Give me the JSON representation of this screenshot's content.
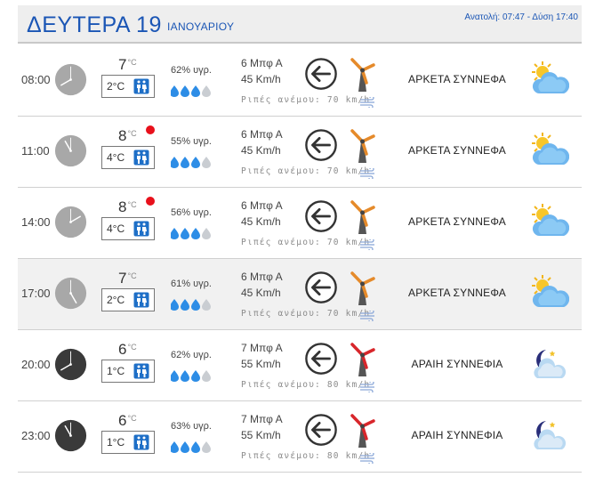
{
  "header": {
    "day": "ΔΕΥΤΕΡΑ 19",
    "month": "ΙΑΝΟΥΑΡΙΟΥ",
    "sun_info": "Ανατολή: 07:47  - Δύση 17:40"
  },
  "colors": {
    "accent": "#1b56b5",
    "alert_dot": "#e8101b",
    "day_clock": "#a8a8a8",
    "night_clock": "#3a3a3a",
    "turbine_mild": "#e58a2a",
    "turbine_strong": "#d8262b"
  },
  "rows": [
    {
      "time": "08:00",
      "clock": "day",
      "temp": "7",
      "unit": "°C",
      "alert": false,
      "feels": "2°C",
      "humidity": "62% υγρ.",
      "drops_filled": 3,
      "beaufort": "6 Μπφ Α",
      "kmh": "45 Km/h",
      "gust": "Ριπές ανέμου: 70 km/h",
      "turbine": "mild",
      "condition": "ΑΡΚΕΤΑ ΣΥΝΝΕΦΑ",
      "icon": "sun-cloud-icon",
      "alt": false
    },
    {
      "time": "11:00",
      "clock": "day",
      "temp": "8",
      "unit": "°C",
      "alert": true,
      "feels": "4°C",
      "humidity": "55% υγρ.",
      "drops_filled": 3,
      "beaufort": "6 Μπφ Α",
      "kmh": "45 Km/h",
      "gust": "Ριπές ανέμου: 70 km/h",
      "turbine": "mild",
      "condition": "ΑΡΚΕΤΑ ΣΥΝΝΕΦΑ",
      "icon": "sun-cloud-icon",
      "alt": false
    },
    {
      "time": "14:00",
      "clock": "day",
      "temp": "8",
      "unit": "°C",
      "alert": true,
      "feels": "4°C",
      "humidity": "56% υγρ.",
      "drops_filled": 3,
      "beaufort": "6 Μπφ Α",
      "kmh": "45 Km/h",
      "gust": "Ριπές ανέμου: 70 km/h",
      "turbine": "mild",
      "condition": "ΑΡΚΕΤΑ ΣΥΝΝΕΦΑ",
      "icon": "sun-cloud-icon",
      "alt": false
    },
    {
      "time": "17:00",
      "clock": "day",
      "temp": "7",
      "unit": "°C",
      "alert": false,
      "feels": "2°C",
      "humidity": "61% υγρ.",
      "drops_filled": 3,
      "beaufort": "6 Μπφ Α",
      "kmh": "45 Km/h",
      "gust": "Ριπές ανέμου: 70 km/h",
      "turbine": "mild",
      "condition": "ΑΡΚΕΤΑ ΣΥΝΝΕΦΑ",
      "icon": "sun-cloud-icon",
      "alt": true
    },
    {
      "time": "20:00",
      "clock": "night",
      "temp": "6",
      "unit": "°C",
      "alert": false,
      "feels": "1°C",
      "humidity": "62% υγρ.",
      "drops_filled": 3,
      "beaufort": "7 Μπφ Α",
      "kmh": "55 Km/h",
      "gust": "Ριπές ανέμου: 80 km/h",
      "turbine": "strong",
      "condition": "ΑΡΑΙΗ ΣΥΝΝΕΦΙΑ",
      "icon": "moon-cloud-icon",
      "alt": false
    },
    {
      "time": "23:00",
      "clock": "night",
      "temp": "6",
      "unit": "°C",
      "alert": false,
      "feels": "1°C",
      "humidity": "63% υγρ.",
      "drops_filled": 3,
      "beaufort": "7 Μπφ Α",
      "kmh": "55 Km/h",
      "gust": "Ριπές ανέμου: 80 km/h",
      "turbine": "strong",
      "condition": "ΑΡΑΙΗ ΣΥΝΝΕΦΙΑ",
      "icon": "moon-cloud-icon",
      "alt": false
    }
  ]
}
